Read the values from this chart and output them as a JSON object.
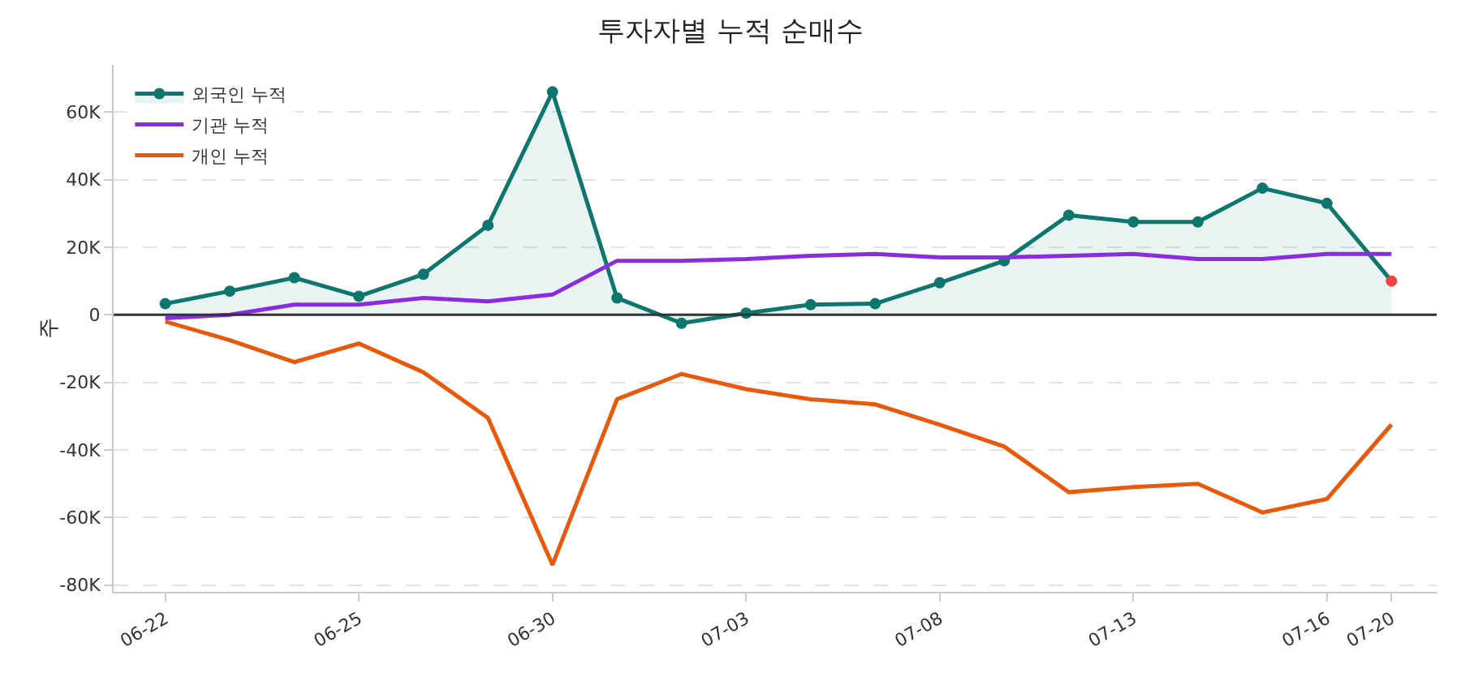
{
  "chart_data": {
    "type": "line",
    "title": "투자자별 누적 순매수",
    "ylabel": "주",
    "categories": [
      "06-22",
      null,
      null,
      "06-25",
      null,
      null,
      "06-30",
      null,
      null,
      "07-03",
      null,
      null,
      "07-08",
      null,
      null,
      "07-13",
      null,
      null,
      "07-16",
      "07-20"
    ],
    "series": [
      {
        "name": "외국인 누적",
        "type": "area",
        "marker": "circle",
        "color": "#0f766e",
        "colors": [
          "#0f766e",
          "#0f766e",
          "#0f766e",
          "#0f766e",
          "#0f766e",
          "#0f766e",
          "#0f766e",
          "#0f766e",
          "#0f766e",
          "#0f766e",
          "#0f766e",
          "#0f766e",
          "#0f766e",
          "#0f766e",
          "#0f766e",
          "#0f766e",
          "#0f766e",
          "#0f766e",
          "#0f766e",
          "#ef4444"
        ],
        "values": [
          3300,
          7000,
          11000,
          5500,
          12000,
          26500,
          66000,
          5000,
          -2500,
          500,
          3000,
          3300,
          9500,
          16000,
          29500,
          27500,
          27500,
          37500,
          33000,
          10000
        ]
      },
      {
        "name": "기관 누적",
        "type": "line",
        "color": "#8b2be2",
        "values": [
          -1000,
          0,
          3000,
          3000,
          5000,
          4000,
          6000,
          16000,
          16000,
          16500,
          17500,
          18000,
          17000,
          17000,
          17500,
          18000,
          16500,
          16500,
          18000,
          18000
        ]
      },
      {
        "name": "개인 누적",
        "type": "line",
        "color": "#e8590c",
        "values": [
          -2000,
          -7500,
          -14000,
          -8500,
          -17000,
          -30500,
          -74000,
          -25000,
          -17500,
          -22000,
          -25000,
          -26500,
          -32500,
          -39000,
          -52500,
          -51000,
          -50000,
          -58500,
          -54500,
          -32500
        ]
      }
    ],
    "ylim": [
      -82000,
      74000
    ],
    "yticks": [
      {
        "value": -80000,
        "label": "-80K"
      },
      {
        "value": -60000,
        "label": "-60K"
      },
      {
        "value": -40000,
        "label": "-40K"
      },
      {
        "value": -20000,
        "label": "-20K"
      },
      {
        "value": 0,
        "label": "0"
      },
      {
        "value": 20000,
        "label": "20K"
      },
      {
        "value": 40000,
        "label": "40K"
      },
      {
        "value": 60000,
        "label": "60K"
      }
    ],
    "ref_lines": [
      {
        "axis": "y",
        "value": 0,
        "color": "#333333"
      }
    ],
    "grid": "y",
    "legend": "top left",
    "line_style": "solid"
  }
}
